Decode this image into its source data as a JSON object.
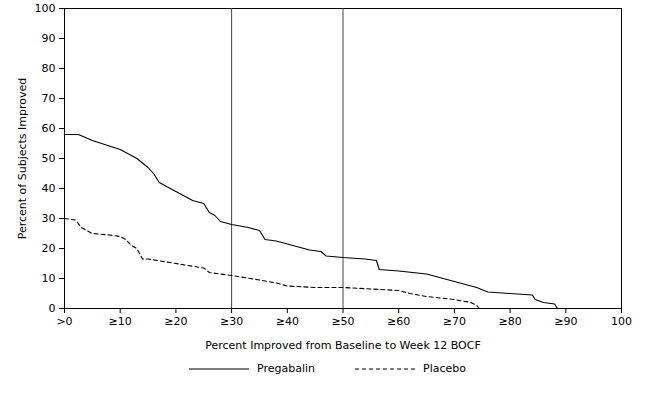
{
  "chart_data": {
    "type": "line",
    "x_label": "Percent Improved from Baseline to Week 12 BOCF",
    "y_label": "Percent of Subjects Improved",
    "xlim": [
      0,
      100
    ],
    "ylim": [
      0,
      100
    ],
    "xticks": [
      {
        "value": 0,
        "label": ">0"
      },
      {
        "value": 10,
        "label": "≥10"
      },
      {
        "value": 20,
        "label": "≥20"
      },
      {
        "value": 30,
        "label": "≥30"
      },
      {
        "value": 40,
        "label": "≥40"
      },
      {
        "value": 50,
        "label": "≥50"
      },
      {
        "value": 60,
        "label": "≥60"
      },
      {
        "value": 70,
        "label": "≥70"
      },
      {
        "value": 80,
        "label": "≥80"
      },
      {
        "value": 90,
        "label": "≥90"
      },
      100
    ],
    "yticks": [
      0,
      10,
      20,
      30,
      40,
      50,
      60,
      70,
      80,
      90,
      100
    ],
    "vlines": [
      30,
      50
    ],
    "legend": "bottom",
    "grid": false,
    "series": [
      {
        "name": "Pregabalin",
        "color": "#000000",
        "line_style": "solid",
        "x": [
          0,
          2.5,
          5,
          10,
          13,
          15,
          16,
          17,
          20,
          22,
          23,
          25,
          26,
          27,
          28,
          30,
          33,
          35,
          36,
          38,
          40,
          44,
          46,
          47,
          50,
          54,
          56,
          56.5,
          60,
          65,
          70,
          74,
          76,
          80,
          84,
          84.5,
          86,
          88,
          88.5
        ],
        "values": [
          58,
          58,
          56,
          53,
          50,
          47,
          45,
          42,
          39,
          37,
          36,
          35,
          32,
          31,
          29,
          28,
          27,
          26,
          23,
          22.5,
          21.5,
          19.5,
          19,
          17.5,
          17,
          16.5,
          16,
          13,
          12.5,
          11.5,
          9,
          7,
          5.5,
          5,
          4.5,
          3,
          2,
          1.5,
          0
        ]
      },
      {
        "name": "Placebo",
        "color": "#000000",
        "line_style": "dashed",
        "x": [
          0,
          2,
          3,
          5,
          8,
          10,
          11,
          12,
          13,
          14,
          15,
          20,
          25,
          26,
          30,
          35,
          38,
          40,
          45,
          50,
          55,
          60,
          62,
          65,
          70,
          73,
          74,
          74.5
        ],
        "values": [
          30,
          29.5,
          27,
          25,
          24.5,
          24,
          23,
          21,
          20,
          16.5,
          16.5,
          15,
          13.5,
          12,
          11,
          9.5,
          8.5,
          7.5,
          7,
          7,
          6.5,
          6,
          5,
          4,
          3,
          2,
          1,
          0
        ]
      }
    ]
  }
}
